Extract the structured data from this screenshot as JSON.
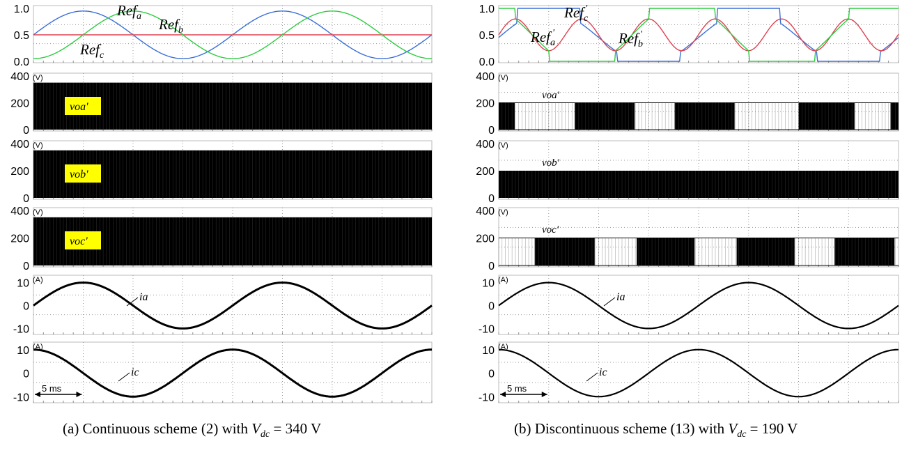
{
  "chart_data": [
    {
      "type": "line",
      "caption": {
        "prefix": "(a) Continuous scheme (2) with ",
        "var": "V",
        "sub": "dc",
        "suffix": " = 340 V"
      },
      "time_marker": "5 ms",
      "panels": [
        {
          "id": "ref",
          "ylim": [
            0,
            1
          ],
          "ticks": [
            "0.0",
            "0.5",
            "1.0"
          ],
          "series": [
            {
              "label": "Ref",
              "sub": "a",
              "color": "#3a6fd8",
              "shape": "sine",
              "phase": 0,
              "period": 10
            },
            {
              "label": "Ref",
              "sub": "b",
              "color": "#e04050",
              "shape": "const",
              "value": 0.5
            },
            {
              "label": "Ref",
              "sub": "c",
              "color": "#2ecc40",
              "shape": "sine",
              "phase": -2.5,
              "period": 10
            }
          ]
        },
        {
          "id": "voa",
          "unit": "(V)",
          "ticks": [
            "0",
            "200",
            "400"
          ],
          "label": "voa'",
          "highlight": "#ffff00",
          "high": 350,
          "pattern": "continuous"
        },
        {
          "id": "vob",
          "unit": "(V)",
          "ticks": [
            "0",
            "200",
            "400"
          ],
          "label": "vob'",
          "highlight": "#ffff00",
          "high": 350,
          "pattern": "continuous"
        },
        {
          "id": "voc",
          "unit": "(V)",
          "ticks": [
            "0",
            "200",
            "400"
          ],
          "label": "voc'",
          "highlight": "#ffff00",
          "high": 350,
          "pattern": "continuous"
        },
        {
          "id": "ia",
          "unit": "(A)",
          "ticks": [
            "-10",
            "0",
            "10"
          ],
          "label": "ia",
          "amplitude": 10,
          "phase": 0
        },
        {
          "id": "ic",
          "unit": "(A)",
          "ticks": [
            "-10",
            "0",
            "10"
          ],
          "label": "ic",
          "amplitude": 10,
          "phase": 2.5
        }
      ]
    },
    {
      "type": "line",
      "caption": {
        "prefix": "(b) Discontinuous scheme (13) with ",
        "var": "V",
        "sub": "dc",
        "suffix": " = 190 V"
      },
      "time_marker": "5 ms",
      "panels": [
        {
          "id": "ref",
          "ylim": [
            0,
            1
          ],
          "ticks": [
            "0.0",
            "0.5",
            "1.0"
          ],
          "series": [
            {
              "label": "Ref",
              "sub": "a",
              "prime": true,
              "color": "#3a6fd8"
            },
            {
              "label": "Ref",
              "sub": "b",
              "prime": true,
              "color": "#e04050"
            },
            {
              "label": "Ref",
              "sub": "c",
              "prime": true,
              "color": "#2ecc40"
            }
          ]
        },
        {
          "id": "voa",
          "unit": "(V)",
          "ticks": [
            "0",
            "200",
            "400"
          ],
          "label": "voa'",
          "high": 200,
          "pattern": "discontinuous-a"
        },
        {
          "id": "vob",
          "unit": "(V)",
          "ticks": [
            "0",
            "200",
            "400"
          ],
          "label": "vob'",
          "high": 200,
          "pattern": "full"
        },
        {
          "id": "voc",
          "unit": "(V)",
          "ticks": [
            "0",
            "200",
            "400"
          ],
          "label": "voc'",
          "high": 200,
          "pattern": "discontinuous-c"
        },
        {
          "id": "ia",
          "unit": "(A)",
          "ticks": [
            "-10",
            "0",
            "10"
          ],
          "label": "ia",
          "amplitude": 10,
          "phase": 0
        },
        {
          "id": "ic",
          "unit": "(A)",
          "ticks": [
            "-10",
            "0",
            "10"
          ],
          "label": "ic",
          "amplitude": 10,
          "phase": 2.5
        }
      ]
    }
  ]
}
